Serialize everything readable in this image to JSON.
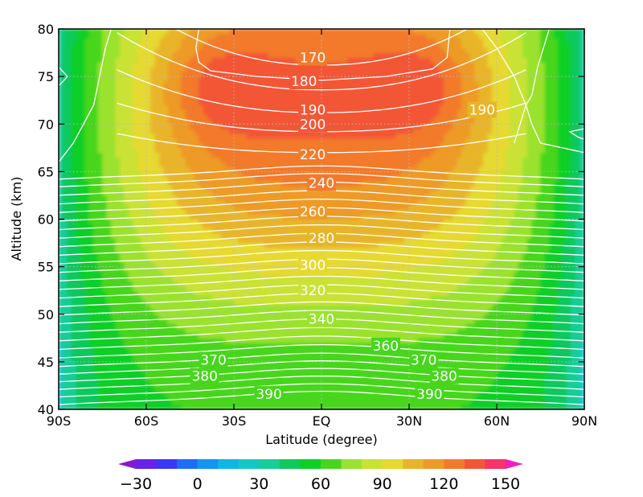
{
  "chart_data": {
    "type": "heatmap",
    "xlabel": "Latitude (degree)",
    "ylabel": "Altitude (km)",
    "xlim": [
      -90,
      90
    ],
    "ylim": [
      40,
      80
    ],
    "x_ticks": [
      -90,
      -60,
      -30,
      0,
      30,
      60,
      90
    ],
    "x_tick_labels": [
      "90S",
      "60S",
      "30S",
      "EQ",
      "30N",
      "60N",
      "90N"
    ],
    "y_ticks": [
      40,
      45,
      50,
      55,
      60,
      65,
      70,
      75,
      80
    ],
    "y_tick_labels": [
      "40",
      "45",
      "50",
      "55",
      "60",
      "65",
      "70",
      "75",
      "80"
    ],
    "grid": "dotted",
    "colorbar": {
      "levels": [
        -30,
        -20,
        -10,
        0,
        10,
        20,
        30,
        40,
        50,
        60,
        70,
        80,
        90,
        100,
        110,
        120,
        130,
        140,
        150
      ],
      "colors": [
        "#8a17cf",
        "#6a22e8",
        "#3a39f5",
        "#1f6ef6",
        "#1296f0",
        "#10b6e6",
        "#13c8c4",
        "#18cd96",
        "#10c85c",
        "#0fcf25",
        "#47d61d",
        "#9ae22f",
        "#c9e236",
        "#e6d932",
        "#e8b52a",
        "#ee9a28",
        "#f27a2c",
        "#f35636",
        "#f5346a",
        "#f21ec0"
      ],
      "tick_values": [
        -30,
        0,
        30,
        60,
        90,
        120,
        150
      ],
      "tick_labels": [
        "−30",
        "0",
        "30",
        "60",
        "90",
        "120",
        "150"
      ],
      "extend": "both",
      "placement": "bottom"
    },
    "filled_field_peak": {
      "latitude": 0,
      "altitude_km": 72,
      "value": 140
    },
    "contour_lines": {
      "color": "white",
      "levels": [
        170,
        180,
        190,
        200,
        220,
        240,
        260,
        280,
        300,
        320,
        340,
        360,
        370,
        380,
        390
      ],
      "labels": [
        {
          "text": "170",
          "lat": -3,
          "alt": 77
        },
        {
          "text": "180",
          "lat": -6,
          "alt": 74.5
        },
        {
          "text": "190",
          "lat": -3,
          "alt": 71.5
        },
        {
          "text": "190",
          "lat": 55,
          "alt": 71.5
        },
        {
          "text": "200",
          "lat": -3,
          "alt": 70
        },
        {
          "text": "220",
          "lat": -3,
          "alt": 66.8
        },
        {
          "text": "240",
          "lat": 0,
          "alt": 63.8
        },
        {
          "text": "260",
          "lat": -3,
          "alt": 60.8
        },
        {
          "text": "280",
          "lat": 0,
          "alt": 58
        },
        {
          "text": "300",
          "lat": -3,
          "alt": 55.2
        },
        {
          "text": "320",
          "lat": -3,
          "alt": 52.5
        },
        {
          "text": "340",
          "lat": 0,
          "alt": 49.5
        },
        {
          "text": "360",
          "lat": 22,
          "alt": 46.7
        },
        {
          "text": "370",
          "lat": -37,
          "alt": 45.2
        },
        {
          "text": "370",
          "lat": 35,
          "alt": 45.2
        },
        {
          "text": "380",
          "lat": -40,
          "alt": 43.5
        },
        {
          "text": "380",
          "lat": 42,
          "alt": 43.5
        },
        {
          "text": "390",
          "lat": -18,
          "alt": 41.6
        },
        {
          "text": "390",
          "lat": 37,
          "alt": 41.6
        }
      ]
    }
  }
}
